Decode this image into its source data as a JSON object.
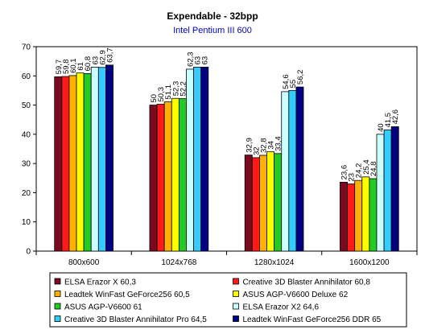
{
  "chart_data": {
    "type": "bar",
    "title": "Expendable - 32bpp",
    "subtitle": "Intel Pentium III 600",
    "xlabel": "",
    "ylabel": "",
    "ylim": [
      0,
      70
    ],
    "yticks": [
      0,
      10,
      20,
      30,
      40,
      50,
      60,
      70
    ],
    "grid": false,
    "legend_position": "bottom",
    "categories": [
      "800x600",
      "1024x768",
      "1280x1024",
      "1600x1200"
    ],
    "series": [
      {
        "name": "ELSA Erazor X 60,3",
        "color": "#7b0a1e",
        "values": [
          59.7,
          50,
          32.9,
          23.6
        ],
        "labels": [
          "59,7",
          "50",
          "32,9",
          "23,6"
        ]
      },
      {
        "name": "Creative 3D Blaster Annihilator 60,8",
        "color": "#ff1a1a",
        "values": [
          59.8,
          50.3,
          32,
          23
        ],
        "labels": [
          "59,8",
          "50,3",
          "32",
          "23"
        ]
      },
      {
        "name": "Leadtek WinFast GeForce256 60,5",
        "color": "#ffb000",
        "values": [
          60.1,
          51.1,
          32.8,
          24.2
        ],
        "labels": [
          "60,1",
          "51,1",
          "32,8",
          "24,2"
        ]
      },
      {
        "name": "ASUS AGP-V6600 Deluxe 62",
        "color": "#ffff00",
        "values": [
          61,
          52.3,
          34,
          25.4
        ],
        "labels": [
          "61",
          "52,3",
          "34",
          "25,4"
        ]
      },
      {
        "name": "ASUS AGP-V6600 61",
        "color": "#22cc22",
        "values": [
          60.8,
          52.2,
          33.4,
          24.8
        ],
        "labels": [
          "60,8",
          "52,2",
          "33,4",
          "24,8"
        ]
      },
      {
        "name": "ELSA Erazor X2 64,6",
        "color": "#ccffff",
        "values": [
          63,
          62.3,
          54.6,
          40
        ],
        "labels": [
          "63",
          "62,3",
          "54,6",
          "40"
        ]
      },
      {
        "name": "Creative 3D Blaster Annihilator Pro 64,5",
        "color": "#33ccff",
        "values": [
          62.9,
          63,
          55,
          41.5
        ],
        "labels": [
          "62,9",
          "63",
          "55",
          "41,5"
        ]
      },
      {
        "name": "Leadtek WinFast GeForce256 DDR 65",
        "color": "#000080",
        "values": [
          63.7,
          63,
          56.2,
          42.6
        ],
        "labels": [
          "63,7",
          "63",
          "56,2",
          "42,6"
        ]
      }
    ]
  }
}
